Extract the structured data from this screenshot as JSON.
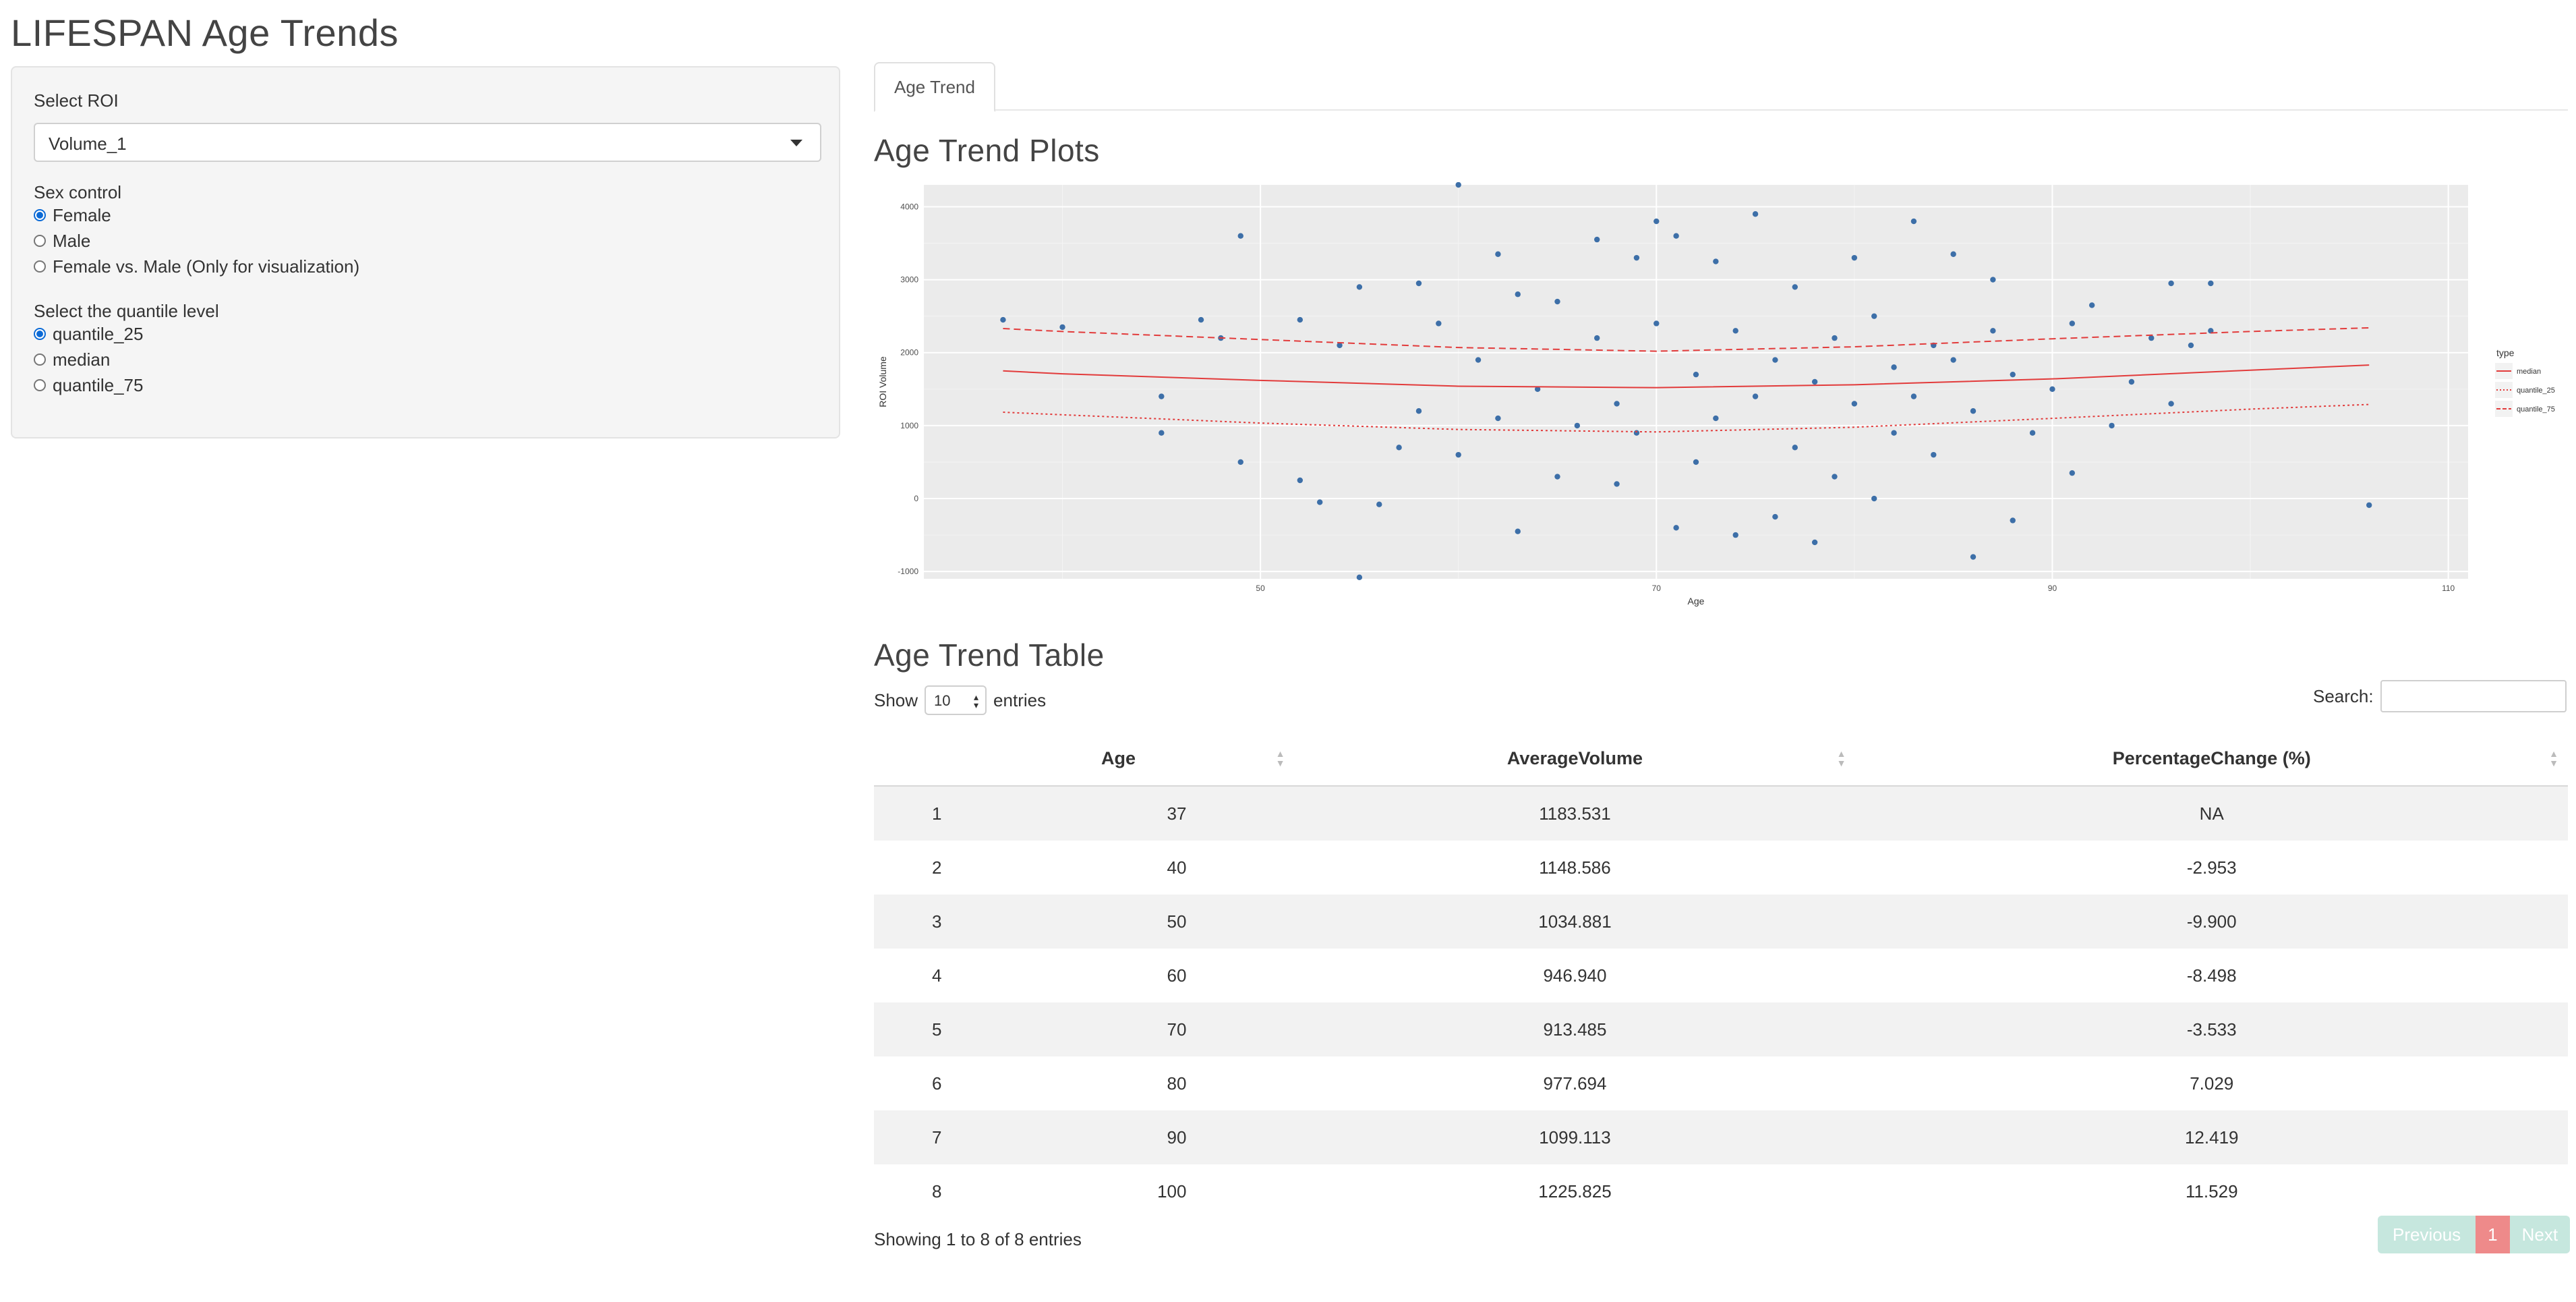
{
  "app": {
    "title": "LIFESPAN Age Trends"
  },
  "sidebar": {
    "roi_label": "Select ROI",
    "roi_value": "Volume_1",
    "sex_label": "Sex control",
    "sex_options": [
      "Female",
      "Male",
      "Female vs. Male (Only for visualization)"
    ],
    "sex_selected": "Female",
    "quantile_label": "Select the quantile level",
    "quantile_options": [
      "quantile_25",
      "median",
      "quantile_75"
    ],
    "quantile_selected": "quantile_25"
  },
  "tabs": [
    "Age Trend"
  ],
  "plot_heading": "Age Trend Plots",
  "table_heading": "Age Trend Table",
  "chart_data": {
    "type": "scatter",
    "title": "",
    "xlabel": "Age",
    "ylabel": "ROI Volume",
    "xlim": [
      33,
      111
    ],
    "ylim": [
      -1100,
      4300
    ],
    "x_ticks": [
      50,
      70,
      90,
      110
    ],
    "y_ticks": [
      -1000,
      0,
      1000,
      2000,
      3000,
      4000
    ],
    "grid": true,
    "legend": {
      "title": "type",
      "position": "right",
      "entries": [
        "median",
        "quantile_25",
        "quantile_75"
      ]
    },
    "lines": [
      {
        "name": "median",
        "style": "solid",
        "x": [
          37,
          40,
          50,
          60,
          70,
          80,
          90,
          100,
          106
        ],
        "y": [
          1750,
          1710,
          1620,
          1540,
          1520,
          1560,
          1640,
          1760,
          1830
        ]
      },
      {
        "name": "quantile_25",
        "style": "dotted",
        "x": [
          37,
          40,
          50,
          60,
          70,
          80,
          90,
          100,
          106
        ],
        "y": [
          1183.531,
          1148.586,
          1034.881,
          946.94,
          913.485,
          977.694,
          1099.113,
          1225.825,
          1290
        ]
      },
      {
        "name": "quantile_75",
        "style": "dashed",
        "x": [
          37,
          40,
          50,
          60,
          70,
          80,
          90,
          100,
          106
        ],
        "y": [
          2330,
          2290,
          2180,
          2070,
          2020,
          2080,
          2190,
          2290,
          2340
        ]
      }
    ],
    "scatter_points": [
      [
        37,
        2450
      ],
      [
        40,
        2350
      ],
      [
        45,
        1400
      ],
      [
        45,
        900
      ],
      [
        47,
        2450
      ],
      [
        48,
        2200
      ],
      [
        49,
        3600
      ],
      [
        49,
        500
      ],
      [
        52,
        2450
      ],
      [
        52,
        250
      ],
      [
        53,
        -50
      ],
      [
        54,
        2100
      ],
      [
        55,
        -1080
      ],
      [
        55,
        2900
      ],
      [
        56,
        -80
      ],
      [
        57,
        700
      ],
      [
        58,
        2950
      ],
      [
        58,
        1200
      ],
      [
        59,
        2400
      ],
      [
        60,
        4300
      ],
      [
        60,
        600
      ],
      [
        61,
        1900
      ],
      [
        62,
        3350
      ],
      [
        62,
        1100
      ],
      [
        63,
        -450
      ],
      [
        63,
        2800
      ],
      [
        64,
        1500
      ],
      [
        65,
        2700
      ],
      [
        65,
        300
      ],
      [
        66,
        1000
      ],
      [
        67,
        3550
      ],
      [
        67,
        2200
      ],
      [
        68,
        200
      ],
      [
        68,
        1300
      ],
      [
        69,
        3300
      ],
      [
        69,
        900
      ],
      [
        70,
        2400
      ],
      [
        70,
        3800
      ],
      [
        71,
        3600
      ],
      [
        71,
        -400
      ],
      [
        72,
        1700
      ],
      [
        72,
        500
      ],
      [
        73,
        3250
      ],
      [
        73,
        1100
      ],
      [
        74,
        -500
      ],
      [
        74,
        2300
      ],
      [
        75,
        1400
      ],
      [
        75,
        3900
      ],
      [
        76,
        -250
      ],
      [
        76,
        1900
      ],
      [
        77,
        700
      ],
      [
        77,
        2900
      ],
      [
        78,
        -600
      ],
      [
        78,
        1600
      ],
      [
        79,
        2200
      ],
      [
        79,
        300
      ],
      [
        80,
        1300
      ],
      [
        80,
        3300
      ],
      [
        81,
        2500
      ],
      [
        81,
        0
      ],
      [
        82,
        1800
      ],
      [
        82,
        900
      ],
      [
        83,
        3800
      ],
      [
        83,
        1400
      ],
      [
        84,
        2100
      ],
      [
        84,
        600
      ],
      [
        85,
        3350
      ],
      [
        85,
        1900
      ],
      [
        86,
        -800
      ],
      [
        86,
        1200
      ],
      [
        87,
        2300
      ],
      [
        87,
        3000
      ],
      [
        88,
        1700
      ],
      [
        88,
        -300
      ],
      [
        89,
        900
      ],
      [
        90,
        1500
      ],
      [
        91,
        2400
      ],
      [
        91,
        350
      ],
      [
        92,
        2650
      ],
      [
        93,
        1000
      ],
      [
        94,
        1600
      ],
      [
        95,
        2200
      ],
      [
        96,
        2950
      ],
      [
        96,
        1300
      ],
      [
        97,
        2100
      ],
      [
        98,
        2950
      ],
      [
        98,
        2300
      ],
      [
        106,
        -90
      ]
    ]
  },
  "table": {
    "show_label": "Show",
    "page_length": "10",
    "entries_label": "entries",
    "search_label": "Search:",
    "columns": [
      "",
      "Age",
      "AverageVolume",
      "PercentageChange (%)"
    ],
    "rows": [
      [
        "1",
        "37",
        "1183.531",
        "NA"
      ],
      [
        "2",
        "40",
        "1148.586",
        "-2.953"
      ],
      [
        "3",
        "50",
        "1034.881",
        "-9.900"
      ],
      [
        "4",
        "60",
        "946.940",
        "-8.498"
      ],
      [
        "5",
        "70",
        "913.485",
        "-3.533"
      ],
      [
        "6",
        "80",
        "977.694",
        "7.029"
      ],
      [
        "7",
        "90",
        "1099.113",
        "12.419"
      ],
      [
        "8",
        "100",
        "1225.825",
        "11.529"
      ]
    ],
    "info": "Showing 1 to 8 of 8 entries",
    "previous_label": "Previous",
    "current_page": "1",
    "next_label": "Next"
  },
  "colors": {
    "point": "#3d6fa8",
    "line": "#e23b3b",
    "panel_bg": "#ebebeb",
    "pager_active": "#ee8a8a",
    "pager_disabled": "#c6e7de"
  }
}
